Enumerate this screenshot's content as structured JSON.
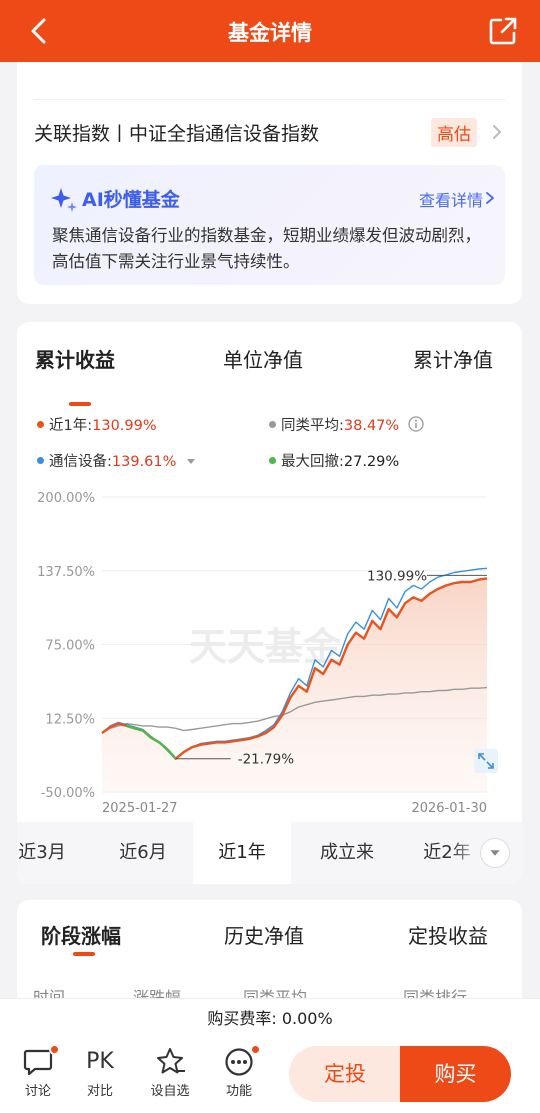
{
  "topbar": {
    "title": "基金详情"
  },
  "related_index": {
    "label": "关联指数丨中证全指通信设备指数",
    "badge": "高估"
  },
  "ai": {
    "title": "AI秒懂基金",
    "link": "查看详情",
    "text": "聚焦通信设备行业的指数基金，短期业绩爆发但波动剧烈，高估值下需关注行业景气持续性。"
  },
  "chart_tabs": [
    "累计收益",
    "单位净值",
    "累计净值"
  ],
  "legend": {
    "fund": {
      "label": "近1年:",
      "value": "130.99%",
      "color": "#e8531e"
    },
    "peer": {
      "label": "同类平均:",
      "value": "38.47%",
      "color": "#999999"
    },
    "index": {
      "label": "通信设备:",
      "value": "139.61%",
      "color": "#3a8fd9"
    },
    "drawdown": {
      "label": "最大回撤:",
      "value": "27.29%",
      "color": "#4cb84c"
    }
  },
  "chart_data": {
    "type": "line",
    "y_ticks": [
      "200.00%",
      "137.50%",
      "75.00%",
      "12.50%",
      "-50.00%"
    ],
    "ylim": [
      -50,
      200
    ],
    "x_labels": [
      "2025-01-27",
      "2026-01-30"
    ],
    "annotations": {
      "max_label": "130.99%",
      "min_label": "-21.79%"
    },
    "watermark": "天天基金",
    "series": [
      {
        "name": "近1年",
        "color": "#e8531e",
        "values": [
          0,
          5,
          8,
          6,
          4,
          2,
          -4,
          -8,
          -14,
          -21.79,
          -16,
          -12,
          -10,
          -9,
          -8,
          -8,
          -7,
          -6,
          -5,
          -3,
          0,
          5,
          15,
          30,
          40,
          35,
          55,
          50,
          62,
          58,
          75,
          85,
          80,
          95,
          88,
          105,
          98,
          110,
          115,
          112,
          118,
          122,
          125,
          127,
          128,
          128,
          130,
          130.99
        ]
      },
      {
        "name": "通信设备",
        "color": "#3a8fd9",
        "values": [
          0,
          6,
          9,
          7,
          5,
          3,
          -3,
          -8,
          -15,
          -22,
          -16,
          -12,
          -9,
          -8,
          -7,
          -7,
          -6,
          -5,
          -4,
          -2,
          2,
          7,
          18,
          34,
          46,
          40,
          62,
          56,
          70,
          65,
          84,
          94,
          88,
          104,
          96,
          114,
          106,
          120,
          125,
          122,
          128,
          132,
          134,
          136,
          137,
          138,
          139,
          139.61
        ]
      },
      {
        "name": "同类平均",
        "color": "#999999",
        "values": [
          0,
          4,
          6,
          8,
          7,
          6,
          6,
          5,
          5,
          4,
          2,
          3,
          4,
          5,
          6,
          7,
          8,
          8,
          9,
          10,
          12,
          14,
          15,
          18,
          22,
          24,
          26,
          27,
          28,
          29,
          30,
          31,
          31,
          32,
          32,
          33,
          33,
          34,
          34,
          35,
          35,
          36,
          36,
          37,
          37,
          38,
          38,
          38.47
        ]
      }
    ]
  },
  "periods": [
    "近3月",
    "近6月",
    "近1年",
    "成立来",
    "近2年"
  ],
  "stage_tabs": [
    "阶段涨幅",
    "历史净值",
    "定投收益"
  ],
  "stage_cols": [
    "时间",
    "涨跌幅",
    "同类平均",
    "同类排行"
  ],
  "fee": "购买费率: 0.00%",
  "bottom": {
    "discuss": "讨论",
    "compare_icon": "PK",
    "compare": "对比",
    "watch": "设自选",
    "more": "功能",
    "ding": "定投",
    "buy": "购买"
  }
}
